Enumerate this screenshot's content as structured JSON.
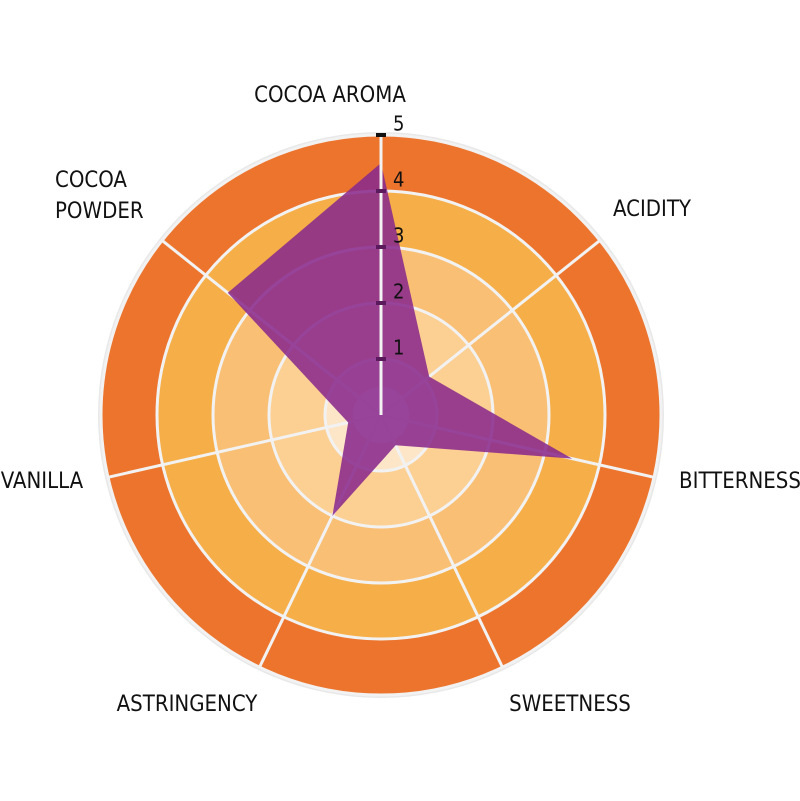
{
  "chart_data": {
    "type": "radar",
    "categories": [
      "COCOA AROMA",
      "ACIDITY",
      "BITTERNESS",
      "SWEETNESS",
      "ASTRINGENCY",
      "VANILLA",
      "COCOA\nPOWDER"
    ],
    "values": [
      4.5,
      1.1,
      3.5,
      0.6,
      2,
      0.6,
      3.5
    ],
    "color": "#8a2a8c",
    "ylim": [
      0,
      5
    ],
    "yticks": [
      1,
      2,
      3,
      4,
      5
    ],
    "band_colors": [
      "#fde6c8",
      "#fccf93",
      "#f9bf75",
      "#f6ae48",
      "#ed742d"
    ]
  }
}
